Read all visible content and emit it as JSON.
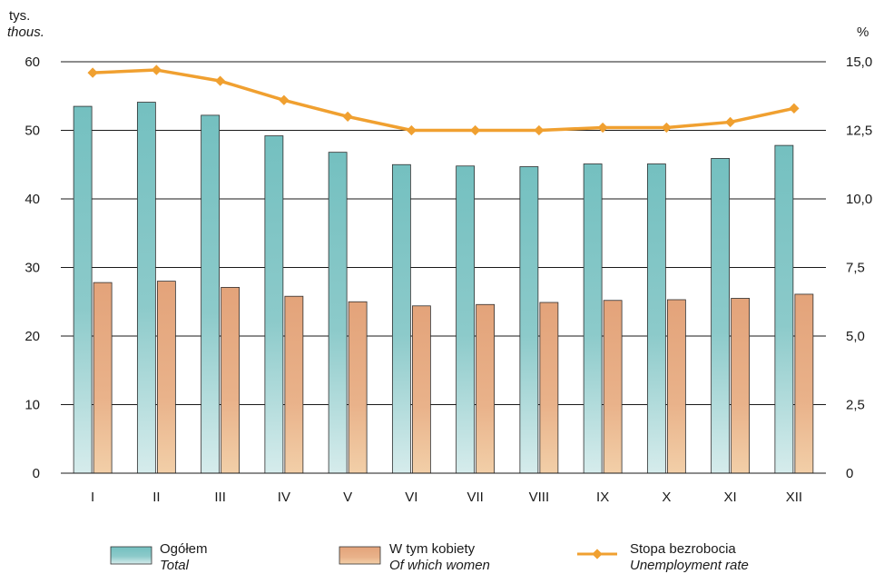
{
  "chart_data": {
    "type": "bar",
    "categories": [
      "I",
      "II",
      "III",
      "IV",
      "V",
      "VI",
      "VII",
      "VIII",
      "IX",
      "X",
      "XI",
      "XII"
    ],
    "series": [
      {
        "name": "Ogółem",
        "name_en": "Total",
        "type": "bar",
        "axis": "left",
        "color": "#7cc3c3",
        "values": [
          53.5,
          54.1,
          52.2,
          49.2,
          46.8,
          45.0,
          44.8,
          44.7,
          45.1,
          45.1,
          45.9,
          47.8
        ]
      },
      {
        "name": "W tym kobiety",
        "name_en": "Of which women",
        "type": "bar",
        "axis": "left",
        "color": "#e8a87c",
        "values": [
          27.8,
          28.0,
          27.1,
          25.8,
          25.0,
          24.4,
          24.6,
          24.9,
          25.2,
          25.3,
          25.5,
          26.1
        ]
      },
      {
        "name": "Stopa bezrobocia",
        "name_en": "Unemployment rate",
        "type": "line",
        "axis": "right",
        "color": "#f0a030",
        "values": [
          14.6,
          14.7,
          14.3,
          13.6,
          13.0,
          12.5,
          12.5,
          12.5,
          12.6,
          12.6,
          12.8,
          13.3
        ]
      }
    ],
    "left_axis": {
      "label_pl": "tys.",
      "label_en": "thous.",
      "min": 0,
      "max": 60,
      "ticks": [
        "0",
        "10",
        "20",
        "30",
        "40",
        "50",
        "60"
      ]
    },
    "right_axis": {
      "label": "%",
      "min": 0,
      "max": 15,
      "ticks": [
        "0",
        "2,5",
        "5,0",
        "7,5",
        "10,0",
        "12,5",
        "15,0"
      ]
    },
    "grid": true,
    "legend_position": "bottom"
  }
}
